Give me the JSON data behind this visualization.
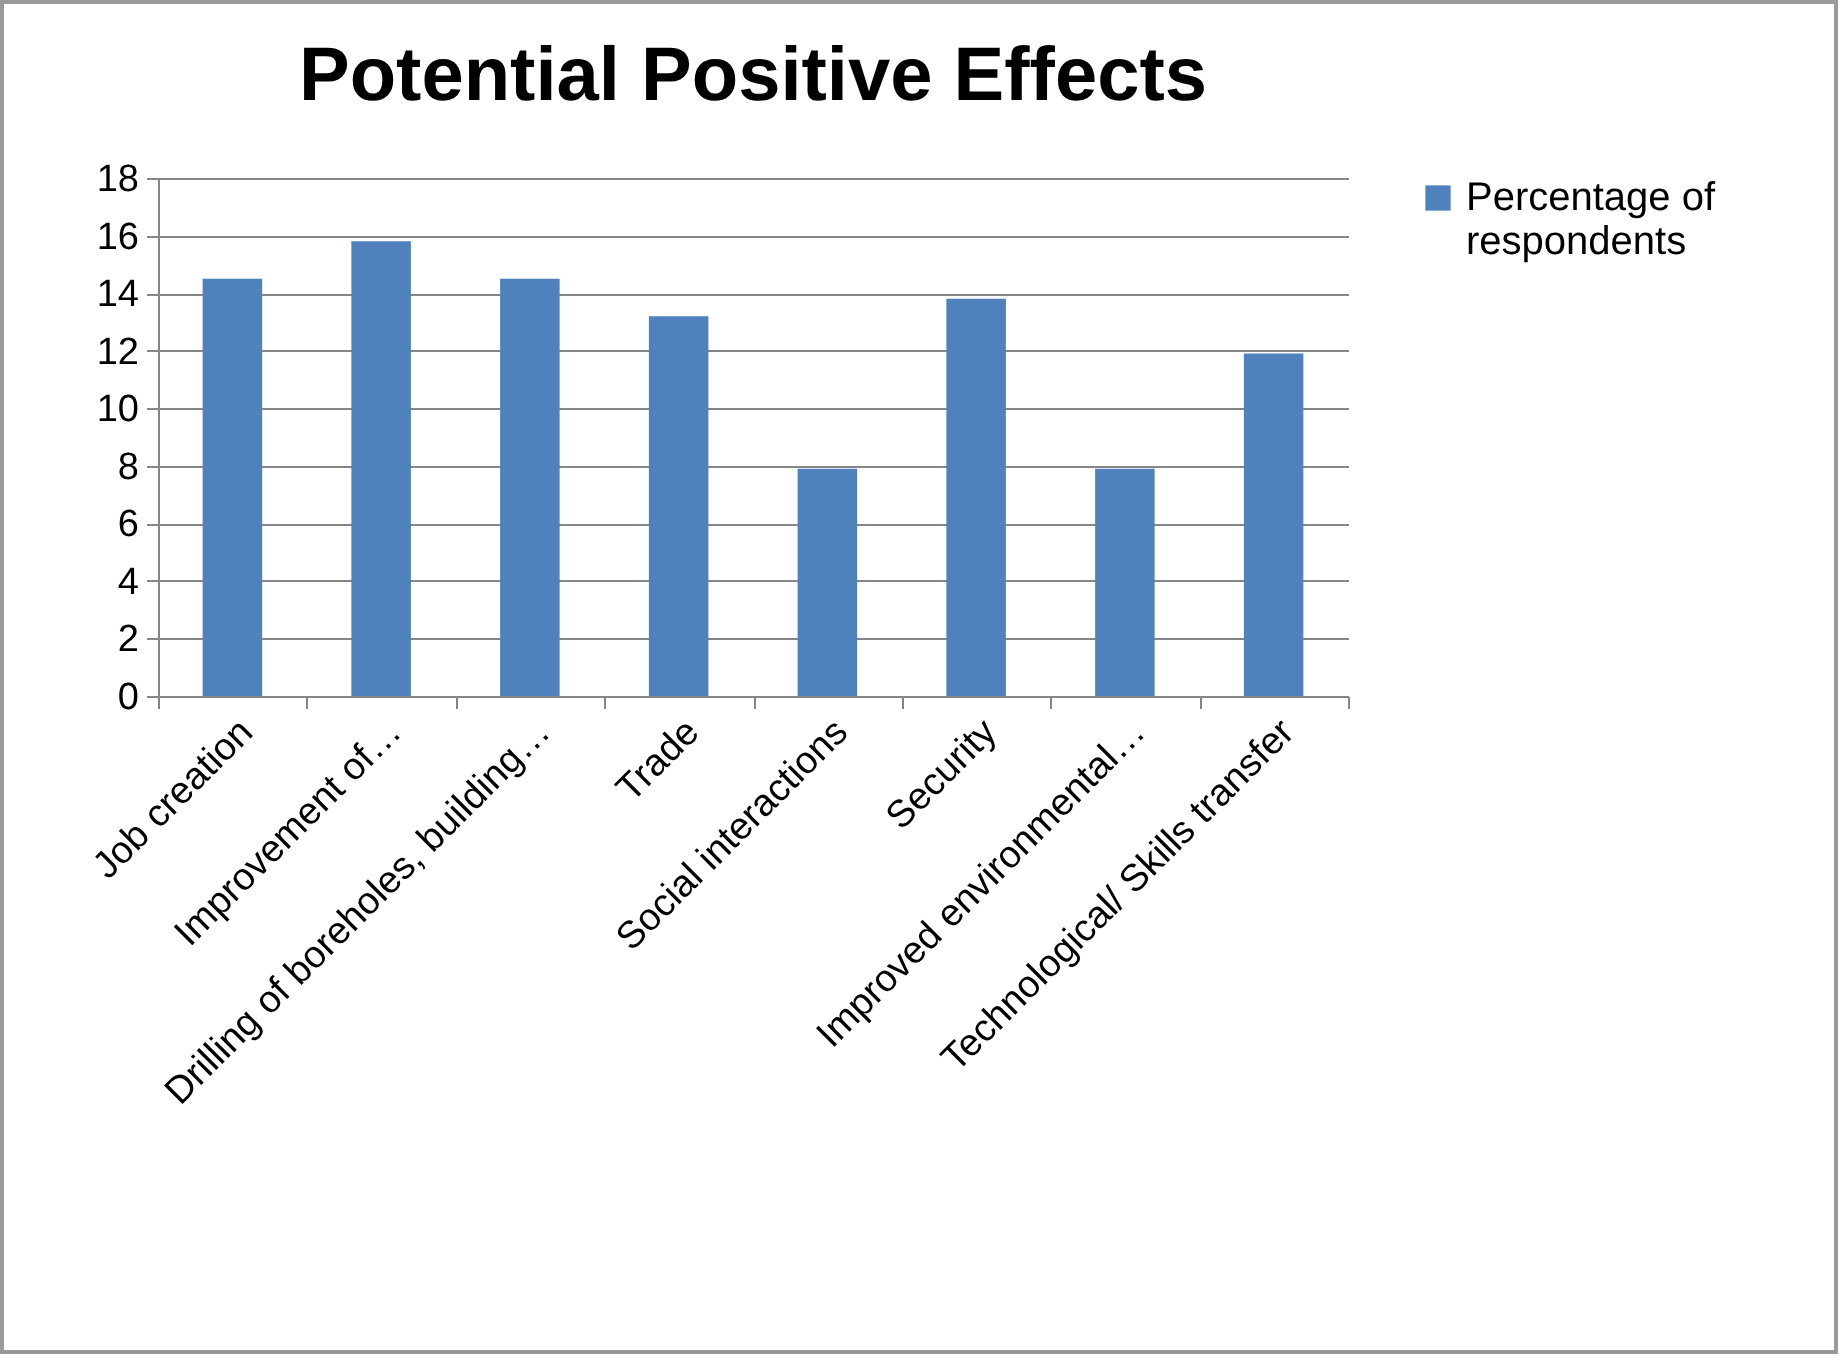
{
  "chart_data": {
    "type": "bar",
    "title": "Potential Positive Effects",
    "categories": [
      "Job creation",
      "Improvement of…",
      "Drilling of boreholes, building…",
      "Trade",
      "Social interactions",
      "Security",
      "Improved environmental…",
      "Technological/ Skills transfer"
    ],
    "series": [
      {
        "name": "Percentage of respondents",
        "color": "#4f81bd",
        "values": [
          14.5,
          15.8,
          14.5,
          13.2,
          7.9,
          13.8,
          7.9,
          11.9
        ]
      }
    ],
    "ylim": [
      0,
      18
    ],
    "yticks": [
      0,
      2,
      4,
      6,
      8,
      10,
      12,
      14,
      16,
      18
    ],
    "grid": "y",
    "legend": "right"
  }
}
